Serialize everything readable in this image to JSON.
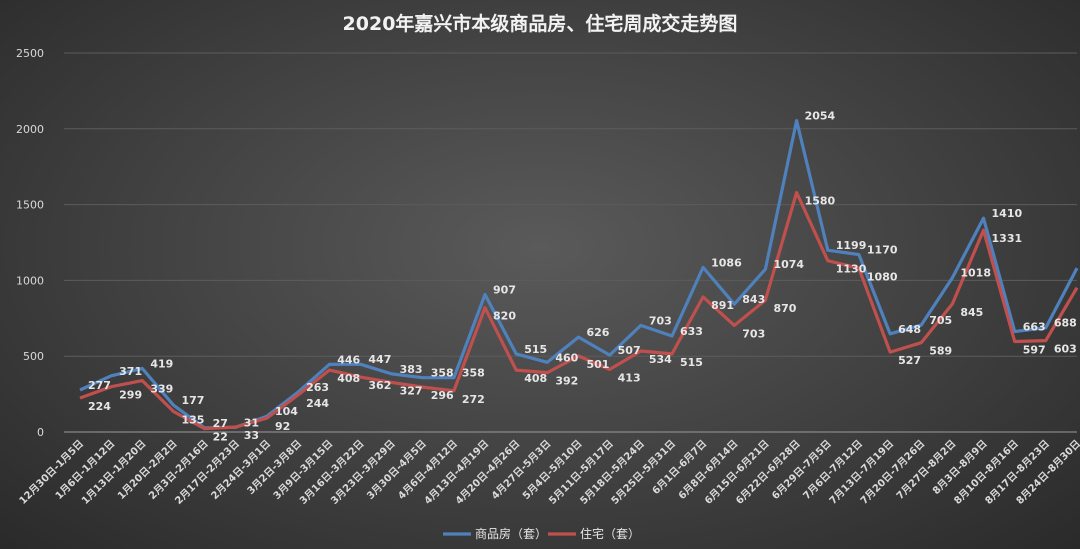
{
  "chart_data": {
    "type": "line",
    "title": "2020年嘉兴市本级商品房、住宅周成交走势图",
    "xlabel": "",
    "ylabel": "",
    "ylim": [
      0,
      2500
    ],
    "yticks": [
      0,
      500,
      1000,
      1500,
      2000,
      2500
    ],
    "grid": true,
    "legend": "bottom",
    "categories": [
      "12月30日-1月5日",
      "1月6日-1月12日",
      "1月13日-1月20日",
      "1月20日-2月2日",
      "2月3日-2月16日",
      "2月17日-2月23日",
      "2月24日-3月1日",
      "3月2日-3月8日",
      "3月9日-3月15日",
      "3月16日-3月22日",
      "3月23日-3月29日",
      "3月30日-4月5日",
      "4月6日-4月12日",
      "4月13日-4月19日",
      "4月20日-4月26日",
      "4月27日-5月3日",
      "5月4日-5月10日",
      "5月11日-5月17日",
      "5月18日-5月24日",
      "5月25日-5月31日",
      "6月1日-6月7日",
      "6月8日-6月14日",
      "6月15日-6月21日",
      "6月22日-6月28日",
      "6月29日-7月5日",
      "7月6日-7月12日",
      "7月13日-7月19日",
      "7月20日-7月26日",
      "7月27日-8月2日",
      "8月3日-8月9日",
      "8月10日-8月16日",
      "8月17日-8月23日",
      "8月24日-8月30日"
    ],
    "series": [
      {
        "name": "商品房（套）",
        "color": "#4f81bd",
        "values": [
          277,
          371,
          419,
          177,
          27,
          31,
          104,
          263,
          446,
          447,
          383,
          358,
          358,
          907,
          515,
          460,
          626,
          507,
          703,
          633,
          1086,
          843,
          1074,
          2054,
          1199,
          1170,
          648,
          705,
          1018,
          1410,
          663,
          688,
          1081
        ]
      },
      {
        "name": "住宅（套）",
        "color": "#c0504d",
        "values": [
          224,
          299,
          339,
          135,
          22,
          33,
          92,
          244,
          408,
          362,
          327,
          296,
          272,
          820,
          408,
          392,
          501,
          413,
          534,
          515,
          891,
          703,
          870,
          1580,
          1130,
          1080,
          527,
          589,
          845,
          1331,
          597,
          603,
          952
        ]
      }
    ]
  }
}
